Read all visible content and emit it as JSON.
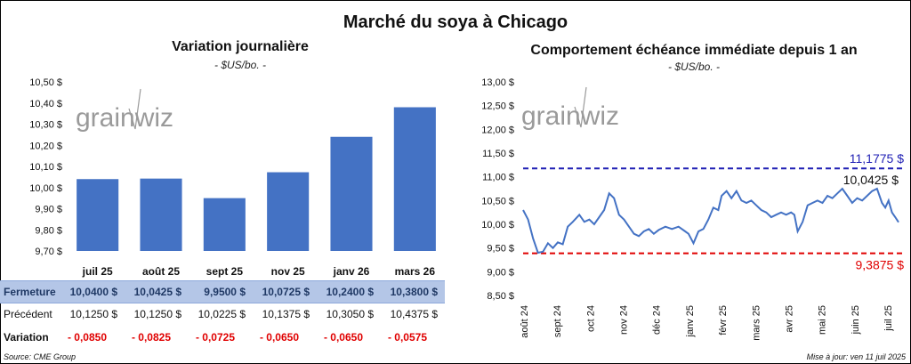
{
  "main_title": "Marché du soya à Chicago",
  "left_panel": {
    "title": "Variation journalière",
    "subtitle": "- $US/bo. -",
    "logo_text": "grainwiz",
    "table": {
      "row_labels": {
        "close": "Fermeture",
        "prev": "Précédent",
        "var": "Variation"
      },
      "close_values": [
        "10,0400  $",
        "10,0425  $",
        "9,9500  $",
        "10,0725  $",
        "10,2400  $",
        "10,3800  $"
      ],
      "prev_values": [
        "10,1250  $",
        "10,1250  $",
        "10,0225  $",
        "10,1375  $",
        "10,3050  $",
        "10,4375  $"
      ],
      "var_values": [
        "- 0,0850",
        "- 0,0825",
        "- 0,0725",
        "- 0,0650",
        "- 0,0650",
        "- 0,0575"
      ]
    }
  },
  "right_panel": {
    "title": "Comportement échéance immédiate depuis 1 an",
    "subtitle": "- $US/bo. -",
    "logo_text": "grainwiz"
  },
  "footer": {
    "source": "Source: CME Group",
    "updated": "Mise à jour: ven 11 juil 2025"
  },
  "chart_data": [
    {
      "type": "bar",
      "title": "Variation journalière",
      "ylabel": "$US/bo.",
      "categories": [
        "juil 25",
        "août 25",
        "sept 25",
        "nov 25",
        "janv 26",
        "mars 26"
      ],
      "values": [
        10.04,
        10.0425,
        9.95,
        10.0725,
        10.24,
        10.38
      ],
      "ylim": [
        9.7,
        10.5
      ],
      "yticks": [
        9.7,
        9.8,
        9.9,
        10.0,
        10.1,
        10.2,
        10.3,
        10.4,
        10.5
      ],
      "ytick_labels": [
        "9,70 $",
        "9,80 $",
        "9,90 $",
        "10,00 $",
        "10,10 $",
        "10,20 $",
        "10,30 $",
        "10,40 $",
        "10,50 $"
      ],
      "color": "#4472c4",
      "grid": false
    },
    {
      "type": "line",
      "title": "Comportement échéance immédiate depuis 1 an",
      "ylabel": "$US/bo.",
      "ylim": [
        8.5,
        13.0
      ],
      "yticks": [
        8.5,
        9.0,
        9.5,
        10.0,
        10.5,
        11.0,
        11.5,
        12.0,
        12.5,
        13.0
      ],
      "ytick_labels": [
        "8,50 $",
        "9,00 $",
        "9,50 $",
        "10,00 $",
        "10,50 $",
        "11,00 $",
        "11,50 $",
        "12,00 $",
        "12,50 $",
        "13,00 $"
      ],
      "xticks": [
        "août 24",
        "sept 24",
        "oct 24",
        "nov 24",
        "déc 24",
        "janv 25",
        "févr 25",
        "mars 25",
        "avr 25",
        "mai 25",
        "juin 25",
        "juil 25"
      ],
      "x_range_months": [
        0,
        11.35
      ],
      "series": [
        {
          "color": "#4472c4",
          "points": [
            [
              0.0,
              10.3
            ],
            [
              0.15,
              10.1
            ],
            [
              0.3,
              9.7
            ],
            [
              0.45,
              9.4
            ],
            [
              0.6,
              9.42
            ],
            [
              0.75,
              9.6
            ],
            [
              0.9,
              9.5
            ],
            [
              1.05,
              9.62
            ],
            [
              1.2,
              9.58
            ],
            [
              1.35,
              9.95
            ],
            [
              1.5,
              10.05
            ],
            [
              1.7,
              10.2
            ],
            [
              1.85,
              10.05
            ],
            [
              2.0,
              10.1
            ],
            [
              2.15,
              10.0
            ],
            [
              2.3,
              10.15
            ],
            [
              2.45,
              10.3
            ],
            [
              2.6,
              10.65
            ],
            [
              2.75,
              10.55
            ],
            [
              2.9,
              10.2
            ],
            [
              3.05,
              10.1
            ],
            [
              3.2,
              9.95
            ],
            [
              3.35,
              9.8
            ],
            [
              3.5,
              9.75
            ],
            [
              3.65,
              9.85
            ],
            [
              3.8,
              9.9
            ],
            [
              3.95,
              9.8
            ],
            [
              4.1,
              9.88
            ],
            [
              4.3,
              9.95
            ],
            [
              4.5,
              9.9
            ],
            [
              4.7,
              9.95
            ],
            [
              4.9,
              9.85
            ],
            [
              5.0,
              9.8
            ],
            [
              5.15,
              9.6
            ],
            [
              5.3,
              9.85
            ],
            [
              5.45,
              9.9
            ],
            [
              5.6,
              10.1
            ],
            [
              5.75,
              10.35
            ],
            [
              5.9,
              10.3
            ],
            [
              6.0,
              10.6
            ],
            [
              6.15,
              10.7
            ],
            [
              6.3,
              10.55
            ],
            [
              6.45,
              10.7
            ],
            [
              6.6,
              10.5
            ],
            [
              6.75,
              10.45
            ],
            [
              6.9,
              10.5
            ],
            [
              7.05,
              10.4
            ],
            [
              7.2,
              10.3
            ],
            [
              7.35,
              10.25
            ],
            [
              7.5,
              10.15
            ],
            [
              7.65,
              10.2
            ],
            [
              7.8,
              10.25
            ],
            [
              7.95,
              10.2
            ],
            [
              8.1,
              10.25
            ],
            [
              8.2,
              10.2
            ],
            [
              8.3,
              9.85
            ],
            [
              8.45,
              10.05
            ],
            [
              8.6,
              10.4
            ],
            [
              8.75,
              10.45
            ],
            [
              8.9,
              10.5
            ],
            [
              9.05,
              10.45
            ],
            [
              9.2,
              10.6
            ],
            [
              9.35,
              10.55
            ],
            [
              9.5,
              10.65
            ],
            [
              9.65,
              10.75
            ],
            [
              9.8,
              10.6
            ],
            [
              9.95,
              10.45
            ],
            [
              10.1,
              10.55
            ],
            [
              10.25,
              10.5
            ],
            [
              10.4,
              10.6
            ],
            [
              10.55,
              10.7
            ],
            [
              10.7,
              10.75
            ],
            [
              10.85,
              10.45
            ],
            [
              10.95,
              10.35
            ],
            [
              11.05,
              10.5
            ],
            [
              11.15,
              10.25
            ],
            [
              11.25,
              10.15
            ],
            [
              11.35,
              10.0425
            ]
          ]
        }
      ],
      "reference_lines": [
        {
          "value": 11.1775,
          "label": "11,1775 $",
          "color": "#1f1fb4",
          "style": "dashed"
        },
        {
          "value": 9.3875,
          "label": "9,3875 $",
          "color": "#e00000",
          "style": "dashed"
        }
      ],
      "last_value_label": "10,0425 $",
      "grid": false
    }
  ]
}
